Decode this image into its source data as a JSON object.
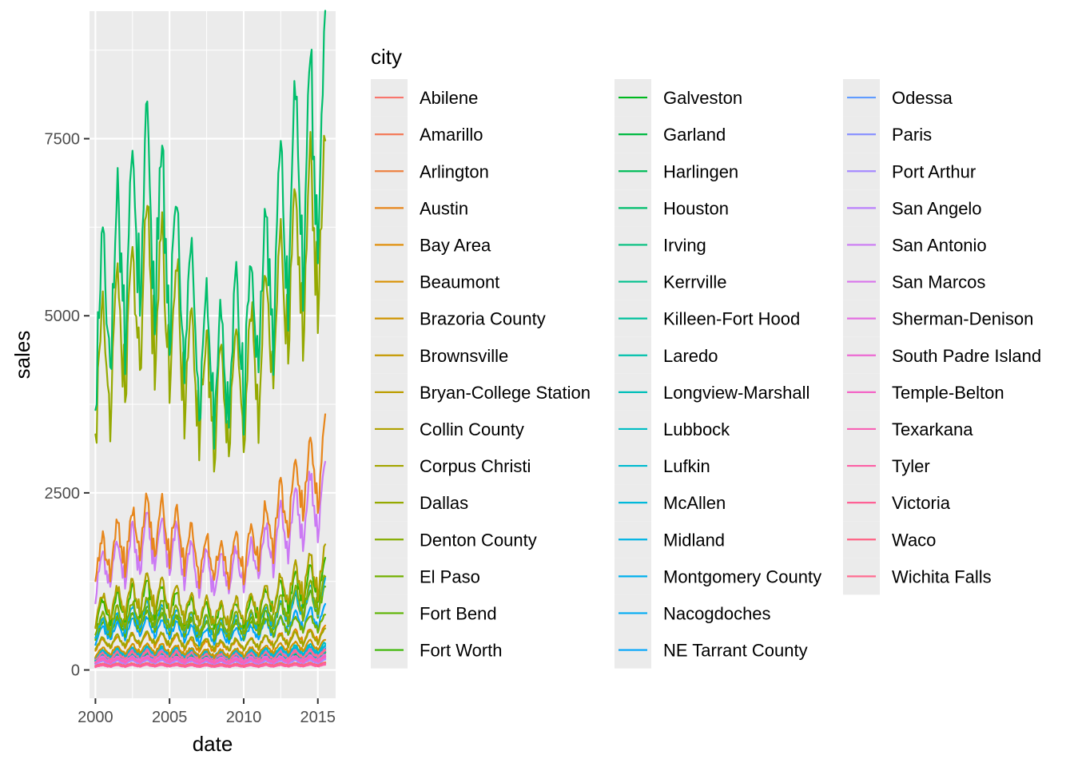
{
  "chart_data": {
    "type": "line",
    "x_axis": {
      "label": "date",
      "range": [
        1999.6,
        2016.2
      ],
      "ticks": [
        2000,
        2005,
        2010,
        2015
      ],
      "tick_labels": [
        "2000",
        "2005",
        "2010",
        "2015"
      ],
      "data_range": [
        2000.0,
        2015.5
      ]
    },
    "y_axis": {
      "label": "sales",
      "range": [
        -400,
        9300
      ],
      "ticks": [
        0,
        2500,
        5000,
        7500
      ],
      "tick_labels": [
        "0",
        "2500",
        "5000",
        "7500"
      ]
    },
    "grid": true,
    "legend": {
      "title": "city",
      "placement": "right",
      "columns": 3
    },
    "series_profile": {
      "Houston": {
        "base": 4700,
        "amp": 1350,
        "trend": [
          0.98,
          1.18,
          1.35,
          1.2,
          0.95,
          0.88,
          0.98,
          1.2,
          1.42,
          1.55
        ]
      },
      "Dallas": {
        "base": 4100,
        "amp": 1150,
        "trend": [
          0.95,
          1.12,
          1.3,
          1.18,
          0.95,
          0.88,
          0.98,
          1.18,
          1.38,
          1.5
        ]
      },
      "Austin": {
        "base": 1550,
        "amp": 420,
        "trend": [
          0.95,
          1.1,
          1.28,
          1.22,
          1.0,
          0.95,
          1.05,
          1.3,
          1.6,
          1.85
        ]
      },
      "San Antonio": {
        "base": 1350,
        "amp": 380,
        "trend": [
          0.95,
          1.1,
          1.3,
          1.25,
          1.0,
          0.95,
          1.05,
          1.3,
          1.55,
          1.75
        ]
      },
      "Fort Worth": {
        "base": 800,
        "amp": 230,
        "trend": [
          0.95,
          1.1,
          1.25,
          1.15,
          0.95,
          0.9,
          1.0,
          1.2,
          1.4,
          1.55
        ]
      },
      "Collin County": {
        "base": 850,
        "amp": 250,
        "trend": [
          0.95,
          1.1,
          1.25,
          1.15,
          0.95,
          0.9,
          1.0,
          1.2,
          1.45,
          1.6
        ]
      },
      "Montgomery County": {
        "base": 600,
        "amp": 170,
        "trend": [
          0.95,
          1.1,
          1.3,
          1.2,
          1.0,
          0.95,
          1.05,
          1.25,
          1.5,
          1.7
        ]
      },
      "Denton County": {
        "base": 650,
        "amp": 190,
        "trend": [
          0.95,
          1.1,
          1.25,
          1.15,
          0.95,
          0.9,
          1.0,
          1.2,
          1.45,
          1.6
        ]
      },
      "El Paso": {
        "base": 600,
        "amp": 140,
        "trend": [
          0.95,
          1.05,
          1.15,
          1.05,
          0.95,
          0.9,
          0.95,
          1.0,
          1.05,
          1.1
        ]
      },
      "Fort Bend": {
        "base": 550,
        "amp": 160,
        "trend": [
          0.95,
          1.1,
          1.3,
          1.2,
          1.0,
          0.95,
          1.05,
          1.3,
          1.55,
          1.7
        ]
      },
      "NE Tarrant County": {
        "base": 500,
        "amp": 140,
        "trend": [
          0.95,
          1.1,
          1.2,
          1.1,
          0.95,
          0.9,
          1.0,
          1.15,
          1.35,
          1.5
        ]
      },
      "Corpus Christi": {
        "base": 380,
        "amp": 100,
        "trend": [
          0.95,
          1.05,
          1.15,
          1.1,
          0.95,
          0.9,
          0.95,
          1.05,
          1.15,
          1.25
        ]
      },
      "Bay Area": {
        "base": 350,
        "amp": 100,
        "trend": [
          0.95,
          1.1,
          1.2,
          1.15,
          0.95,
          0.9,
          1.0,
          1.15,
          1.3,
          1.4
        ]
      },
      "Brazoria County": {
        "base": 250,
        "amp": 70,
        "trend": [
          0.95,
          1.1,
          1.2,
          1.15,
          0.95,
          0.9,
          1.0,
          1.15,
          1.3,
          1.4
        ]
      },
      "McAllen": {
        "base": 230,
        "amp": 60,
        "trend": [
          0.95,
          1.05,
          1.15,
          1.1,
          0.95,
          0.9,
          0.95,
          1.05,
          1.15,
          1.2
        ]
      },
      "Lubbock": {
        "base": 230,
        "amp": 70,
        "trend": [
          0.95,
          1.05,
          1.15,
          1.1,
          1.0,
          0.95,
          1.0,
          1.1,
          1.2,
          1.3
        ]
      }
    },
    "series": [
      {
        "name": "Abilene",
        "color": "#F8766D"
      },
      {
        "name": "Amarillo",
        "color": "#F37B59"
      },
      {
        "name": "Arlington",
        "color": "#ED8141"
      },
      {
        "name": "Austin",
        "color": "#E7861B"
      },
      {
        "name": "Bay Area",
        "color": "#E08B00"
      },
      {
        "name": "Beaumont",
        "color": "#D89000"
      },
      {
        "name": "Brazoria County",
        "color": "#CF9400"
      },
      {
        "name": "Brownsville",
        "color": "#C59900"
      },
      {
        "name": "Bryan-College Station",
        "color": "#BB9D00"
      },
      {
        "name": "Collin County",
        "color": "#B0A100"
      },
      {
        "name": "Corpus Christi",
        "color": "#A3A500"
      },
      {
        "name": "Dallas",
        "color": "#95A900"
      },
      {
        "name": "Denton County",
        "color": "#85AD00"
      },
      {
        "name": "El Paso",
        "color": "#72B000"
      },
      {
        "name": "Fort Bend",
        "color": "#5BB300"
      },
      {
        "name": "Fort Worth",
        "color": "#39B600"
      },
      {
        "name": "Galveston",
        "color": "#00B81F"
      },
      {
        "name": "Garland",
        "color": "#00BA42"
      },
      {
        "name": "Harlingen",
        "color": "#00BC59"
      },
      {
        "name": "Houston",
        "color": "#00BE6C"
      },
      {
        "name": "Irving",
        "color": "#00BF7D"
      },
      {
        "name": "Kerrville",
        "color": "#00C08D"
      },
      {
        "name": "Killeen-Fort Hood",
        "color": "#00C19C"
      },
      {
        "name": "Laredo",
        "color": "#00C0AB"
      },
      {
        "name": "Longview-Marshall",
        "color": "#00BFB8"
      },
      {
        "name": "Lubbock",
        "color": "#00BDC4"
      },
      {
        "name": "Lufkin",
        "color": "#00BBCF"
      },
      {
        "name": "McAllen",
        "color": "#00B8DA"
      },
      {
        "name": "Midland",
        "color": "#00B4E4"
      },
      {
        "name": "Montgomery County",
        "color": "#00B0ED"
      },
      {
        "name": "Nacogdoches",
        "color": "#00ABF4"
      },
      {
        "name": "NE Tarrant County",
        "color": "#00A5FB"
      },
      {
        "name": "Odessa",
        "color": "#619CFF"
      },
      {
        "name": "Paris",
        "color": "#8B93FF"
      },
      {
        "name": "Port Arthur",
        "color": "#A68AFF"
      },
      {
        "name": "San Angelo",
        "color": "#BB81FC"
      },
      {
        "name": "San Antonio",
        "color": "#CB79F4"
      },
      {
        "name": "San Marcos",
        "color": "#D874EB"
      },
      {
        "name": "Sherman-Denison",
        "color": "#E36EE1"
      },
      {
        "name": "South Padre Island",
        "color": "#EC69D3"
      },
      {
        "name": "Temple-Belton",
        "color": "#F365C6"
      },
      {
        "name": "Texarkana",
        "color": "#F863B6"
      },
      {
        "name": "Tyler",
        "color": "#FC61A6"
      },
      {
        "name": "Victoria",
        "color": "#FE6195"
      },
      {
        "name": "Waco",
        "color": "#FF6284"
      },
      {
        "name": "Wichita Falls",
        "color": "#FF6C91"
      }
    ]
  }
}
